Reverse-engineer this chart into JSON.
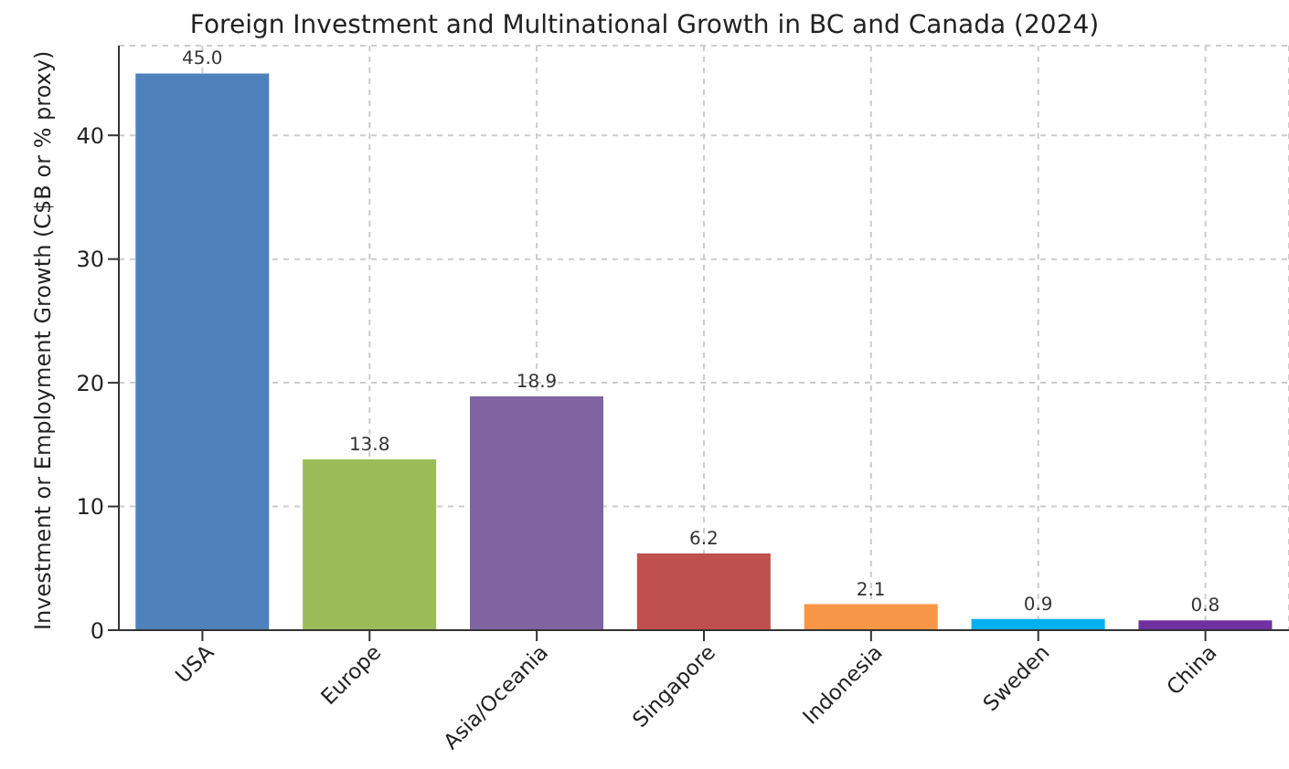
{
  "chart_data": {
    "type": "bar",
    "title": "Foreign Investment and Multinational Growth in BC and Canada (2024)",
    "ylabel": "Investment or Employment Growth (C$B or % proxy)",
    "categories": [
      "USA",
      "Europe",
      "Asia/Oceania",
      "Singapore",
      "Indonesia",
      "Sweden",
      "China"
    ],
    "values": [
      45.0,
      13.8,
      18.9,
      6.2,
      2.1,
      0.9,
      0.8
    ],
    "colors": [
      "#4f81bd",
      "#9bbb59",
      "#8064a2",
      "#c0504d",
      "#f79646",
      "#00b0f0",
      "#7030a0"
    ],
    "value_labels": [
      "45.0",
      "13.8",
      "18.9",
      "6.2",
      "2.1",
      "0.9",
      "0.8"
    ],
    "ylim": [
      0,
      47.25
    ],
    "yticks": [
      0,
      10,
      20,
      30,
      40
    ],
    "grid": true
  }
}
